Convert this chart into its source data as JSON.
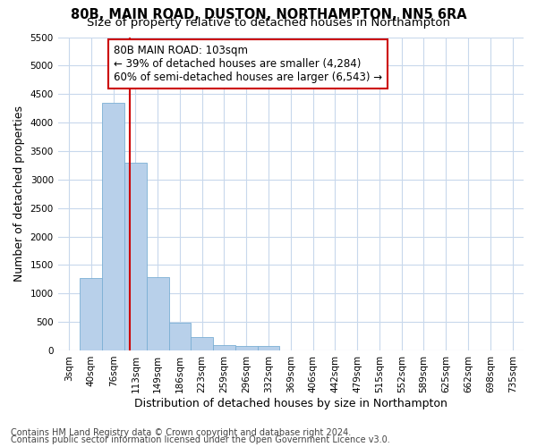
{
  "title1": "80B, MAIN ROAD, DUSTON, NORTHAMPTON, NN5 6RA",
  "title2": "Size of property relative to detached houses in Northampton",
  "xlabel": "Distribution of detached houses by size in Northampton",
  "ylabel": "Number of detached properties",
  "categories": [
    "3sqm",
    "40sqm",
    "76sqm",
    "113sqm",
    "149sqm",
    "186sqm",
    "223sqm",
    "259sqm",
    "296sqm",
    "332sqm",
    "369sqm",
    "406sqm",
    "442sqm",
    "479sqm",
    "515sqm",
    "552sqm",
    "589sqm",
    "625sqm",
    "662sqm",
    "698sqm",
    "735sqm"
  ],
  "values": [
    0,
    1270,
    4350,
    3300,
    1290,
    490,
    240,
    100,
    75,
    75,
    0,
    0,
    0,
    0,
    0,
    0,
    0,
    0,
    0,
    0,
    0
  ],
  "bar_color": "#b8d0ea",
  "bar_edge_color": "#7bafd4",
  "vline_color": "#cc0000",
  "annotation_text": "80B MAIN ROAD: 103sqm\n← 39% of detached houses are smaller (4,284)\n60% of semi-detached houses are larger (6,543) →",
  "annotation_box_color": "#ffffff",
  "annotation_box_edge": "#cc0000",
  "ylim": [
    0,
    5500
  ],
  "yticks": [
    0,
    500,
    1000,
    1500,
    2000,
    2500,
    3000,
    3500,
    4000,
    4500,
    5000,
    5500
  ],
  "footer1": "Contains HM Land Registry data © Crown copyright and database right 2024.",
  "footer2": "Contains public sector information licensed under the Open Government Licence v3.0.",
  "bg_color": "#ffffff",
  "grid_color": "#c8d8ec",
  "title1_fontsize": 10.5,
  "title2_fontsize": 9.5,
  "axis_label_fontsize": 9,
  "tick_fontsize": 7.5,
  "annot_fontsize": 8.5,
  "footer_fontsize": 7.0
}
